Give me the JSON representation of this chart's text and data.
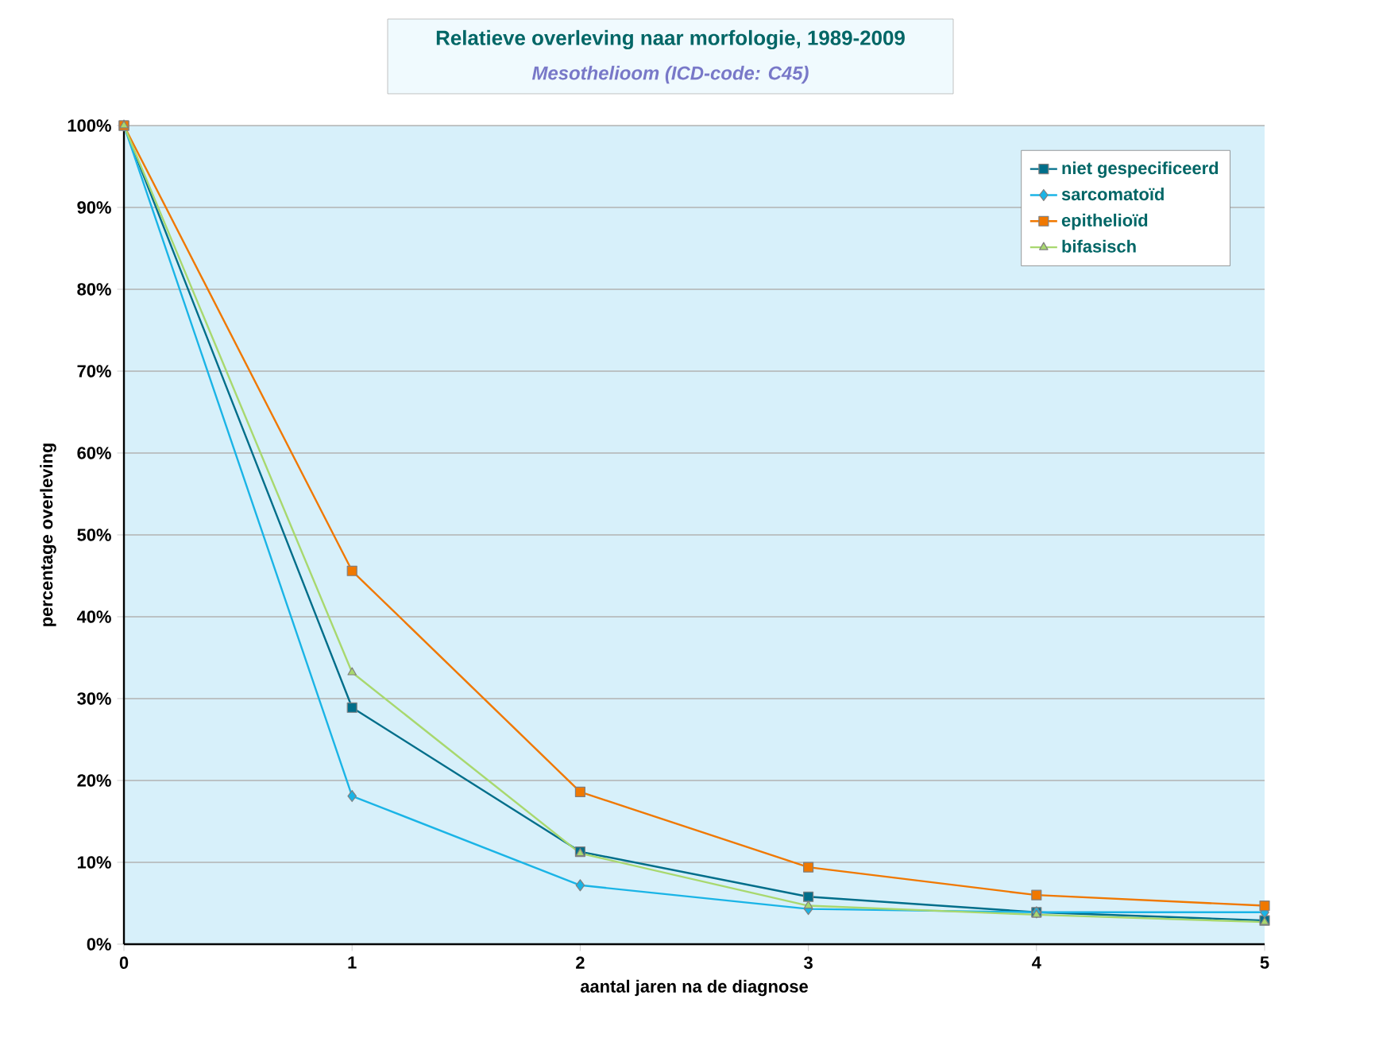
{
  "chart_data": {
    "type": "line",
    "title": "Relatieve overleving naar morfologie, 1989-2009",
    "subtitle": "Mesothelioom (ICD-code: C45)",
    "xlabel": "aantal jaren na de diagnose",
    "ylabel": "percentage overleving",
    "x": [
      0,
      1,
      2,
      3,
      4,
      5
    ],
    "series": [
      {
        "name": "niet gespecificeerd",
        "color": "#006e8a",
        "marker": "square",
        "values": [
          100,
          28.9,
          11.3,
          5.8,
          3.9,
          2.9
        ]
      },
      {
        "name": "sarcomatoïd",
        "color": "#1ab4e6",
        "marker": "diamond",
        "values": [
          100,
          18.1,
          7.2,
          4.3,
          3.9,
          3.9
        ]
      },
      {
        "name": "epithelioïd",
        "color": "#f07800",
        "marker": "square",
        "values": [
          100,
          45.6,
          18.6,
          9.4,
          6.0,
          4.7
        ]
      },
      {
        "name": "bifasisch",
        "color": "#a8d86e",
        "marker": "triangle",
        "values": [
          100,
          33.2,
          11.1,
          4.7,
          3.6,
          2.7
        ]
      }
    ],
    "xlim": [
      0,
      5
    ],
    "xticks": [
      0,
      1,
      2,
      3,
      4,
      5
    ],
    "ylim": [
      0,
      100
    ],
    "yticks": [
      {
        "value": 0,
        "label": "0%"
      },
      {
        "value": 10,
        "label": "10%"
      },
      {
        "value": 20,
        "label": "20%"
      },
      {
        "value": 30,
        "label": "30%"
      },
      {
        "value": 40,
        "label": "40%"
      },
      {
        "value": 50,
        "label": "50%"
      },
      {
        "value": 60,
        "label": "60%"
      },
      {
        "value": 70,
        "label": "70%"
      },
      {
        "value": 80,
        "label": "80%"
      },
      {
        "value": 90,
        "label": "90%"
      },
      {
        "value": 100,
        "label": "100%"
      }
    ],
    "grid": "y",
    "legend": "top right",
    "line_style": "solid"
  }
}
